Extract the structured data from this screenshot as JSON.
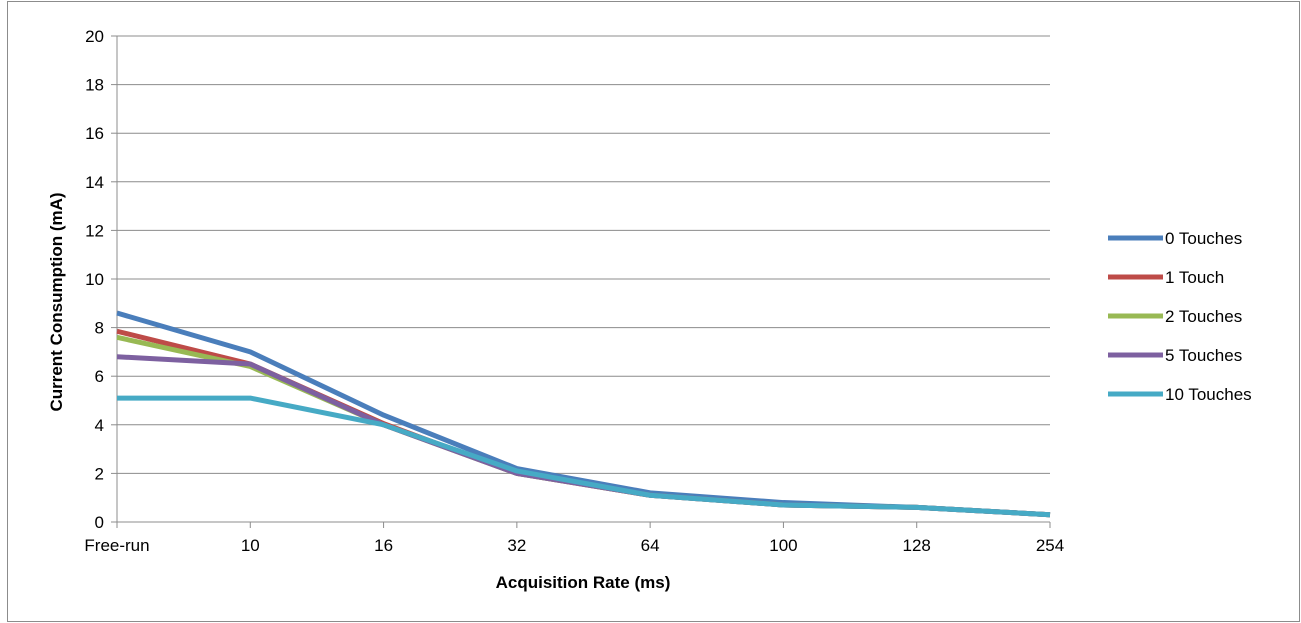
{
  "chart_data": {
    "type": "line",
    "title": "",
    "xlabel": "Acquisition Rate (ms)",
    "ylabel": "Current Consumption (mA)",
    "categories": [
      "Free-run",
      "10",
      "16",
      "32",
      "64",
      "100",
      "128",
      "254"
    ],
    "ylim": [
      0,
      20
    ],
    "yticks": [
      0,
      2,
      4,
      6,
      8,
      10,
      12,
      14,
      16,
      18,
      20
    ],
    "grid": true,
    "legend": "right",
    "series": [
      {
        "name": "0 Touches",
        "color": "#4a7ebb",
        "values": [
          8.6,
          7.0,
          4.4,
          2.2,
          1.2,
          0.8,
          0.6,
          0.3
        ]
      },
      {
        "name": "1 Touch",
        "color": "#be4b48",
        "values": [
          7.85,
          6.5,
          4.05,
          2.0,
          1.1,
          0.7,
          0.6,
          0.3
        ]
      },
      {
        "name": "2 Touches",
        "color": "#98b954",
        "values": [
          7.6,
          6.4,
          4.0,
          2.0,
          1.1,
          0.7,
          0.6,
          0.3
        ]
      },
      {
        "name": "5 Touches",
        "color": "#7d60a0",
        "values": [
          6.8,
          6.5,
          4.0,
          2.0,
          1.1,
          0.7,
          0.6,
          0.3
        ]
      },
      {
        "name": "10 Touches",
        "color": "#46aac5",
        "values": [
          5.1,
          5.1,
          4.0,
          2.1,
          1.1,
          0.7,
          0.6,
          0.3
        ]
      }
    ]
  }
}
